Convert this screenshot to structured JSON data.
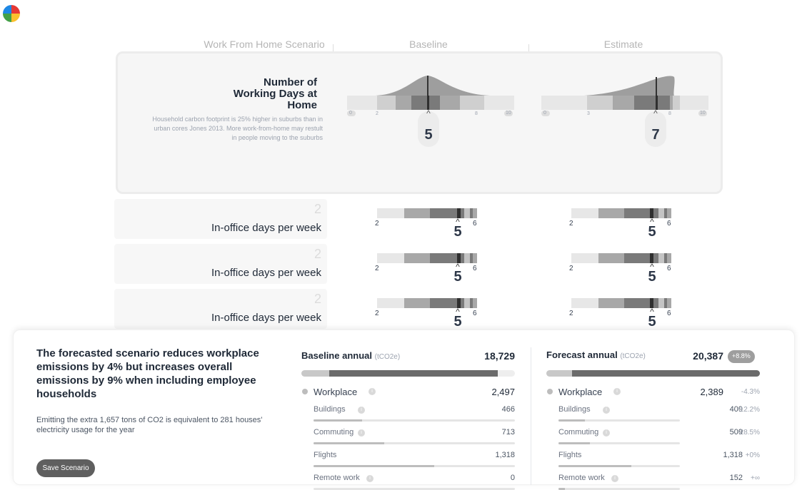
{
  "header": {
    "scenario_label": "Work From Home Scenario",
    "baseline_label": "Baseline",
    "estimate_label": "Estimate"
  },
  "main_variable": {
    "title": "Number of Working Days at Home",
    "description": "Household carbon footprint is 25% higher in suburbs than in urban cores Jones 2013. More work-from-home may restult in people moving to the suburbs",
    "baseline": {
      "value": "5",
      "caret": "^",
      "low_tick": "2",
      "high_tick": "8",
      "min_tick": "0",
      "max_tick": "10"
    },
    "estimate": {
      "value": "7",
      "caret": "^",
      "low_tick": "3",
      "high_tick": "8",
      "min_tick": "0",
      "max_tick": "10"
    }
  },
  "rows": [
    {
      "number": "2",
      "label": "In-office days per week",
      "baseline": {
        "low": "2",
        "value": "5",
        "caret": "^",
        "high": "6"
      },
      "estimate": {
        "low": "2",
        "value": "5",
        "caret": "^",
        "high": "6"
      }
    },
    {
      "number": "2",
      "label": "In-office days per week",
      "baseline": {
        "low": "2",
        "value": "5",
        "caret": "^",
        "high": "6"
      },
      "estimate": {
        "low": "2",
        "value": "5",
        "caret": "^",
        "high": "6"
      }
    },
    {
      "number": "2",
      "label": "In-office days per week",
      "baseline": {
        "low": "2",
        "value": "5",
        "caret": "^",
        "high": "6"
      },
      "estimate": {
        "low": "2",
        "value": "5",
        "caret": "^",
        "high": "6"
      }
    }
  ],
  "summary": {
    "headline": "The forecasted scenario reduces workplace emissions by 4% but increases overall emissions by 9% when including employee households",
    "subtext": "Emitting the extra 1,657 tons of CO2 is equivalent to 281 houses' electricity usage for the year",
    "save_button": "Save Scenario",
    "info_glyph": "i"
  },
  "baseline_annual": {
    "title": "Baseline annual",
    "unit": "(tCO2e)",
    "total": "18,729",
    "bar_light_fraction": 0.13,
    "bar_dark_fraction": 0.92,
    "category": {
      "label": "Workplace",
      "value": "2,497"
    },
    "items": [
      {
        "label": "Buildings",
        "value": "466",
        "bar_fraction": 0.24,
        "info": true
      },
      {
        "label": "Commuting",
        "value": "713",
        "bar_fraction": 0.35,
        "info": true
      },
      {
        "label": "Flights",
        "value": "1,318",
        "bar_fraction": 0.6,
        "info": false
      },
      {
        "label": "Remote work",
        "value": "0",
        "bar_fraction": 0,
        "info": true
      }
    ]
  },
  "forecast_annual": {
    "title": "Forecast annual",
    "unit": "(tCO2e)",
    "total": "20,387",
    "badge": "+8.8%",
    "bar_light_fraction": 0.12,
    "bar_dark_fraction": 1.0,
    "category": {
      "label": "Workplace",
      "value": "2,389",
      "pct": "-4.3%"
    },
    "items": [
      {
        "label": "Buildings",
        "value": "409",
        "pct": "-12.2%",
        "bar_fraction": 0.22,
        "info": true
      },
      {
        "label": "Commuting",
        "value": "509",
        "pct": "-28.5%",
        "bar_fraction": 0.26,
        "info": true
      },
      {
        "label": "Flights",
        "value": "1,318",
        "pct": "+0%",
        "bar_fraction": 0.6,
        "info": false
      },
      {
        "label": "Remote work",
        "value": "152",
        "pct": "+∞",
        "bar_fraction": 0.05,
        "info": true
      }
    ]
  },
  "colors": {
    "strip_light": "#e7e7e7",
    "strip_mid": "#c4c4c4",
    "strip_dark": "#8a8a8a",
    "strip_median": "#3a3a3a",
    "badge": "#9e9e9e",
    "button": "#5f5f5f"
  }
}
